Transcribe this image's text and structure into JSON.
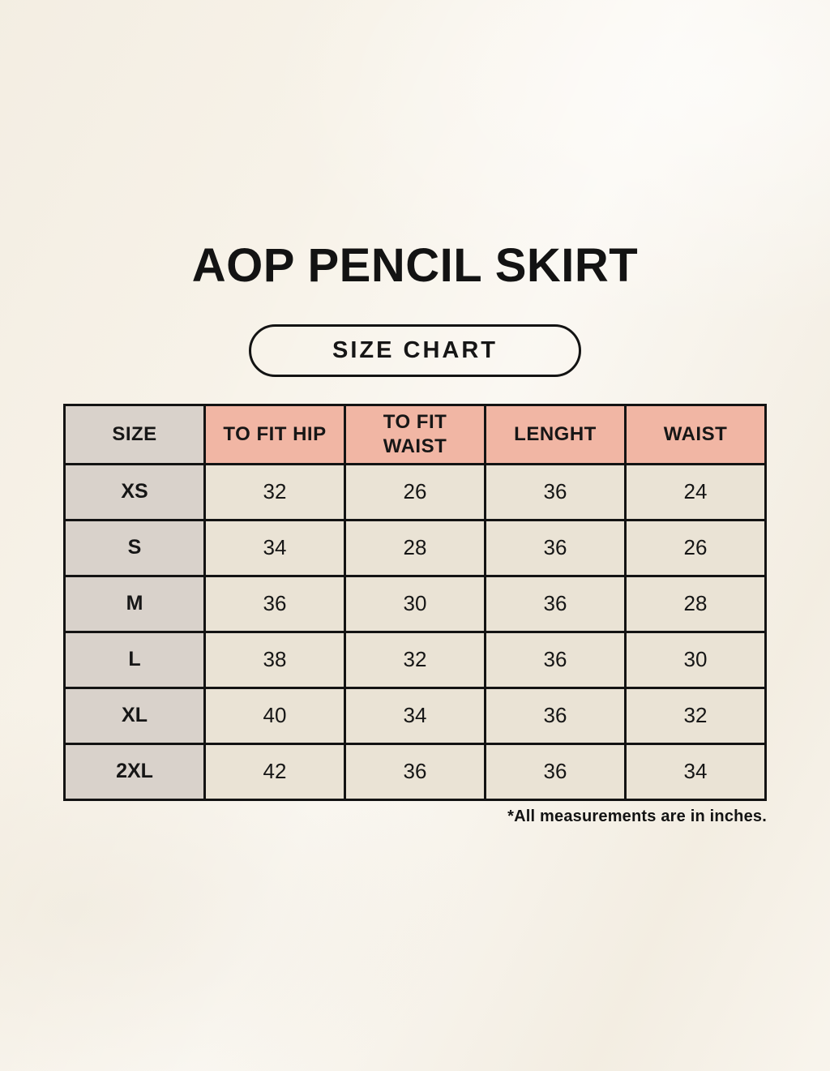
{
  "page": {
    "title": "AOP PENCIL SKIRT",
    "badge_label": "SIZE CHART",
    "footnote": "*All measurements are in inches."
  },
  "size_chart": {
    "columns": [
      "SIZE",
      "TO FIT HIP",
      "TO FIT WAIST",
      "LENGHT",
      "WAIST"
    ],
    "rows": [
      {
        "size": "XS",
        "values": [
          "32",
          "26",
          "36",
          "24"
        ]
      },
      {
        "size": "S",
        "values": [
          "34",
          "28",
          "36",
          "26"
        ]
      },
      {
        "size": "M",
        "values": [
          "36",
          "30",
          "36",
          "28"
        ]
      },
      {
        "size": "L",
        "values": [
          "38",
          "32",
          "36",
          "30"
        ]
      },
      {
        "size": "XL",
        "values": [
          "40",
          "34",
          "36",
          "32"
        ]
      },
      {
        "size": "2XL",
        "values": [
          "42",
          "36",
          "36",
          "34"
        ]
      }
    ],
    "unit": "inches"
  },
  "colors": {
    "background": "#f7f2e8",
    "header_pink": "#f1b6a4",
    "size_column_grey": "#d9d2cb",
    "cell_cream": "#eae3d5",
    "border": "#131313",
    "text": "#161616"
  }
}
